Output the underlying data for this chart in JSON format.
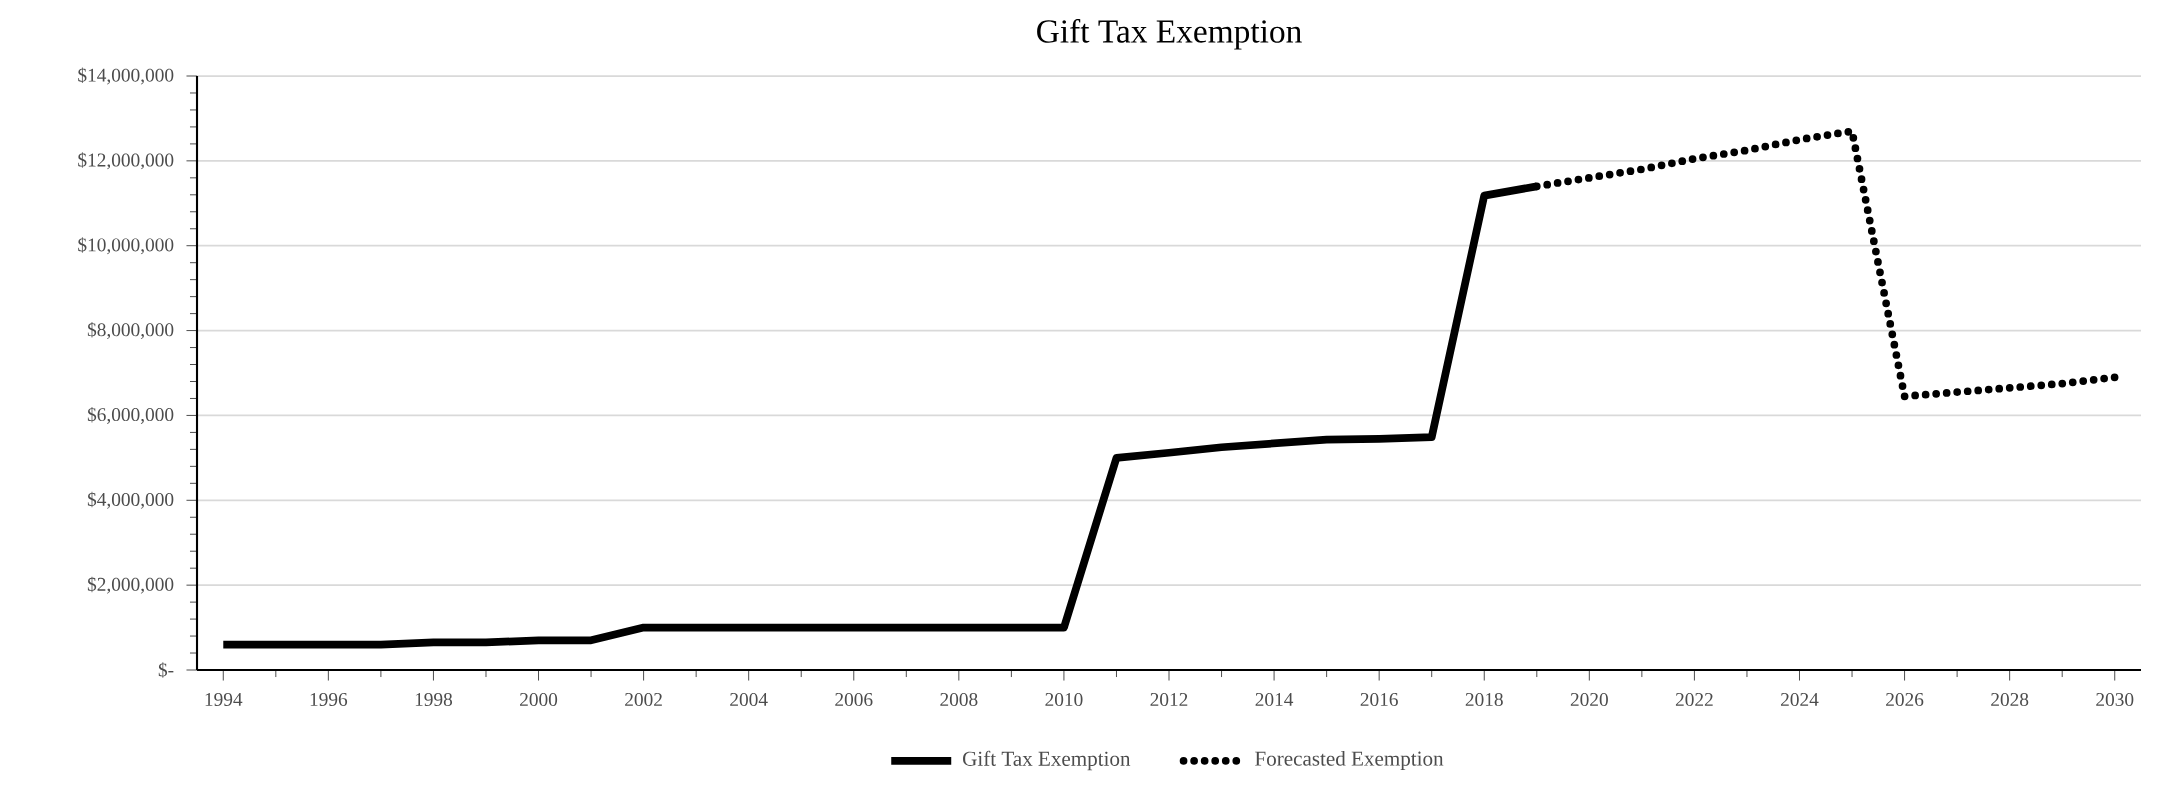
{
  "chart_data": {
    "type": "line",
    "title": "Gift Tax Exemption",
    "series": [
      {
        "name": "Gift Tax Exemption",
        "color": "#000000",
        "line_style": "solid",
        "x": [
          1994,
          1995,
          1996,
          1997,
          1998,
          1999,
          2000,
          2001,
          2002,
          2003,
          2004,
          2005,
          2006,
          2007,
          2008,
          2009,
          2010,
          2011,
          2012,
          2013,
          2014,
          2015,
          2016,
          2017,
          2018,
          2019
        ],
        "values": [
          600000,
          600000,
          600000,
          600000,
          650000,
          650000,
          700000,
          700000,
          1000000,
          1000000,
          1000000,
          1000000,
          1000000,
          1000000,
          1000000,
          1000000,
          1000000,
          5000000,
          5120000,
          5250000,
          5340000,
          5430000,
          5450000,
          5490000,
          11180000,
          11400000
        ]
      },
      {
        "name": "Forecasted Exemption",
        "color": "#000000",
        "line_style": "dotted",
        "x": [
          2019,
          2020,
          2021,
          2022,
          2023,
          2024,
          2025,
          2026,
          2027,
          2028,
          2029,
          2030
        ],
        "values": [
          11400000,
          11600000,
          11800000,
          12050000,
          12250000,
          12500000,
          12700000,
          6450000,
          6550000,
          6650000,
          6750000,
          6900000
        ]
      }
    ],
    "xlim": [
      1993.5,
      2030.5
    ],
    "xticks": [
      1994,
      1996,
      1998,
      2000,
      2002,
      2004,
      2006,
      2008,
      2010,
      2012,
      2014,
      2016,
      2018,
      2020,
      2022,
      2024,
      2026,
      2028,
      2030
    ],
    "ylim": [
      0,
      14000000
    ],
    "yticks": [
      {
        "value": 0,
        "label": "$-"
      },
      {
        "value": 2000000,
        "label": "$2,000,000"
      },
      {
        "value": 4000000,
        "label": "$4,000,000"
      },
      {
        "value": 6000000,
        "label": "$6,000,000"
      },
      {
        "value": 8000000,
        "label": "$8,000,000"
      },
      {
        "value": 10000000,
        "label": "$10,000,000"
      },
      {
        "value": 12000000,
        "label": "$12,000,000"
      },
      {
        "value": 14000000,
        "label": "$14,000,000"
      }
    ],
    "grid": "y",
    "legend": "bottom",
    "marker": "none"
  }
}
